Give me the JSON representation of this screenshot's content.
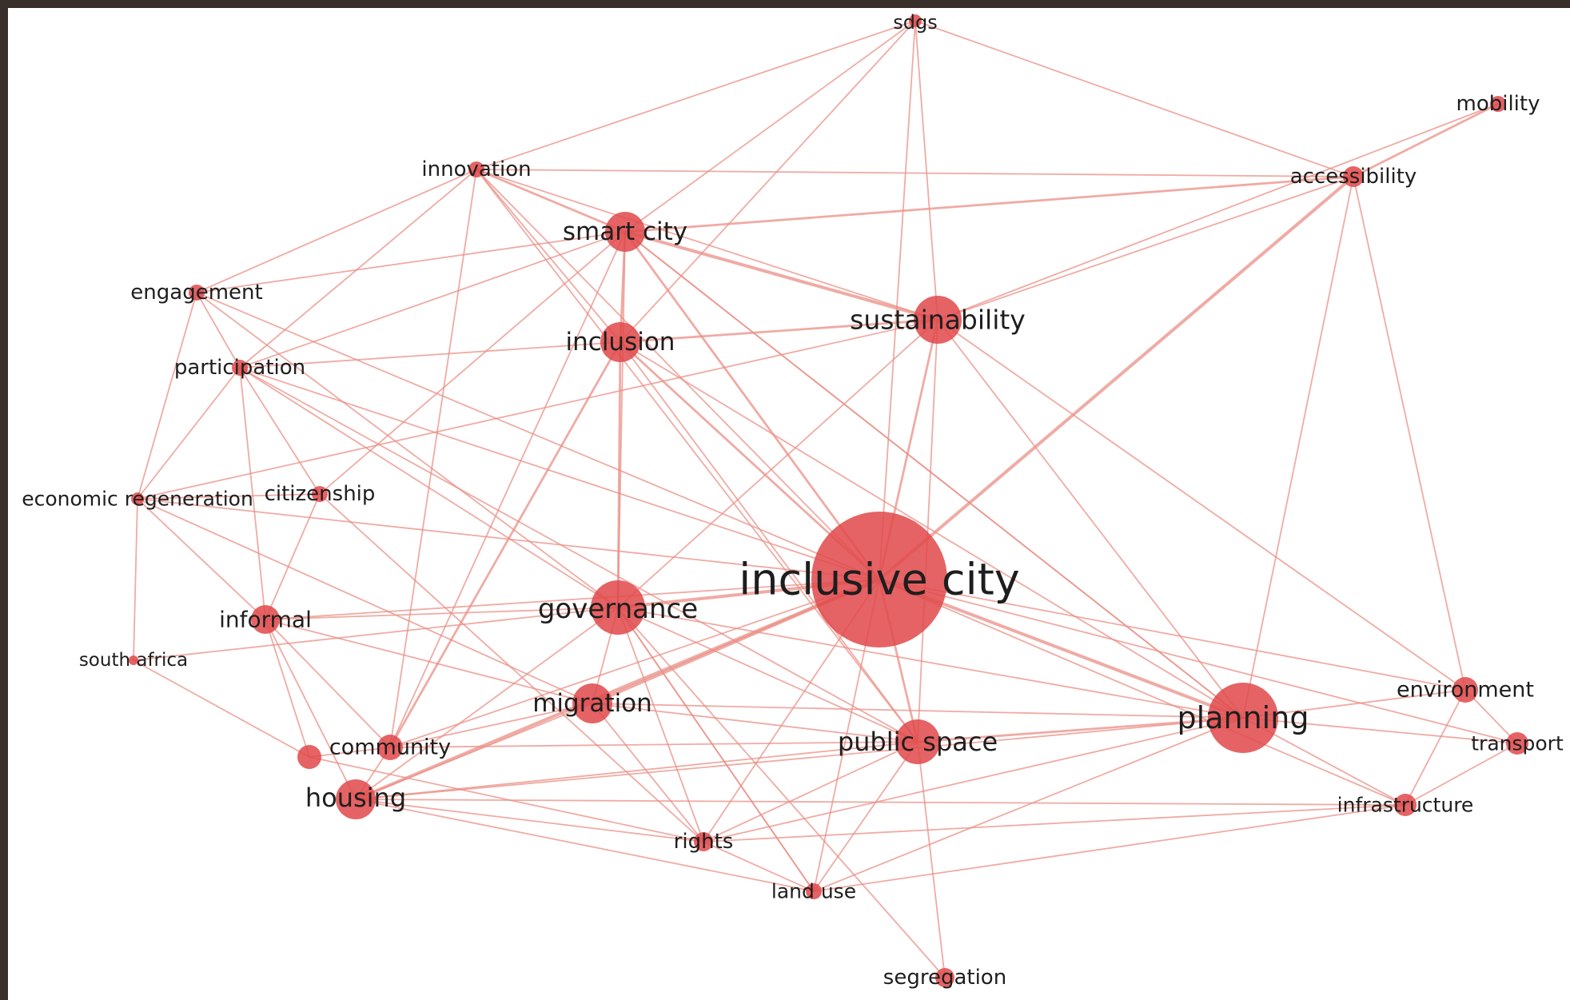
{
  "colors": {
    "background": "#ffffff",
    "border": "#3a302b",
    "node": "#e0484a",
    "edge": "#e98f86",
    "label": "#1e1e1e"
  },
  "network": {
    "nodes": [
      {
        "id": "inclusive-city",
        "label": "inclusive city"
      },
      {
        "id": "planning",
        "label": "planning"
      },
      {
        "id": "governance",
        "label": "governance"
      },
      {
        "id": "sustainability",
        "label": "sustainability"
      },
      {
        "id": "smart-city",
        "label": "smart city"
      },
      {
        "id": "inclusion",
        "label": "inclusion"
      },
      {
        "id": "public-space",
        "label": "public space"
      },
      {
        "id": "migration",
        "label": "migration"
      },
      {
        "id": "housing",
        "label": "housing"
      },
      {
        "id": "informal",
        "label": "informal"
      },
      {
        "id": "community",
        "label": "community"
      },
      {
        "id": "environment",
        "label": "environment"
      },
      {
        "id": "transport",
        "label": "transport"
      },
      {
        "id": "infrastructure",
        "label": "infrastructure"
      },
      {
        "id": "accessibility",
        "label": "accessibility"
      },
      {
        "id": "mobility",
        "label": "mobility"
      },
      {
        "id": "sdgs",
        "label": "sdgs"
      },
      {
        "id": "innovation",
        "label": "innovation"
      },
      {
        "id": "engagement",
        "label": "engagement"
      },
      {
        "id": "participation",
        "label": "participation"
      },
      {
        "id": "economic-regeneration",
        "label": "economic regeneration"
      },
      {
        "id": "citizenship",
        "label": "citizenship"
      },
      {
        "id": "south-africa",
        "label": "south africa"
      },
      {
        "id": "rights",
        "label": "rights"
      },
      {
        "id": "land-use",
        "label": "land use"
      },
      {
        "id": "segregation",
        "label": "segregation"
      },
      {
        "id": "hidden-node",
        "label": ""
      }
    ],
    "edges": [
      [
        "inclusive-city",
        "planning",
        3
      ],
      [
        "inclusive-city",
        "governance",
        3
      ],
      [
        "inclusive-city",
        "sustainability",
        2
      ],
      [
        "inclusive-city",
        "smart-city",
        2
      ],
      [
        "inclusive-city",
        "inclusion",
        2
      ],
      [
        "inclusive-city",
        "public-space",
        2
      ],
      [
        "inclusive-city",
        "migration",
        3
      ],
      [
        "inclusive-city",
        "housing",
        3
      ],
      [
        "inclusive-city",
        "informal",
        1
      ],
      [
        "inclusive-city",
        "environment",
        1
      ],
      [
        "inclusive-city",
        "accessibility",
        3
      ],
      [
        "inclusive-city",
        "sdgs",
        1
      ],
      [
        "inclusive-city",
        "innovation",
        1
      ],
      [
        "inclusive-city",
        "engagement",
        1
      ],
      [
        "inclusive-city",
        "participation",
        1
      ],
      [
        "inclusive-city",
        "economic-regeneration",
        1
      ],
      [
        "inclusive-city",
        "rights",
        1
      ],
      [
        "inclusive-city",
        "land-use",
        1
      ],
      [
        "inclusive-city",
        "transport",
        1
      ],
      [
        "inclusive-city",
        "infrastructure",
        1
      ],
      [
        "inclusive-city",
        "community",
        1
      ],
      [
        "smart-city",
        "sustainability",
        3
      ],
      [
        "smart-city",
        "inclusion",
        2
      ],
      [
        "smart-city",
        "governance",
        1
      ],
      [
        "smart-city",
        "innovation",
        2
      ],
      [
        "smart-city",
        "sdgs",
        1
      ],
      [
        "smart-city",
        "accessibility",
        2
      ],
      [
        "smart-city",
        "planning",
        1
      ],
      [
        "smart-city",
        "engagement",
        1
      ],
      [
        "smart-city",
        "participation",
        1
      ],
      [
        "smart-city",
        "community",
        1
      ],
      [
        "smart-city",
        "citizenship",
        1
      ],
      [
        "inclusion",
        "sustainability",
        2
      ],
      [
        "inclusion",
        "governance",
        2
      ],
      [
        "inclusion",
        "community",
        2
      ],
      [
        "inclusion",
        "participation",
        1
      ],
      [
        "inclusion",
        "planning",
        1
      ],
      [
        "inclusion",
        "public-space",
        1
      ],
      [
        "inclusion",
        "sdgs",
        1
      ],
      [
        "inclusion",
        "innovation",
        1
      ],
      [
        "sustainability",
        "sdgs",
        1
      ],
      [
        "sustainability",
        "accessibility",
        1
      ],
      [
        "sustainability",
        "planning",
        1
      ],
      [
        "sustainability",
        "governance",
        1
      ],
      [
        "sustainability",
        "public-space",
        1
      ],
      [
        "sustainability",
        "economic-regeneration",
        1
      ],
      [
        "sustainability",
        "innovation",
        1
      ],
      [
        "sustainability",
        "environment",
        1
      ],
      [
        "planning",
        "public-space",
        2
      ],
      [
        "planning",
        "environment",
        1
      ],
      [
        "planning",
        "transport",
        1
      ],
      [
        "planning",
        "infrastructure",
        1
      ],
      [
        "planning",
        "accessibility",
        1
      ],
      [
        "planning",
        "governance",
        1
      ],
      [
        "planning",
        "rights",
        1
      ],
      [
        "planning",
        "land-use",
        1
      ],
      [
        "planning",
        "migration",
        1
      ],
      [
        "planning",
        "housing",
        1
      ],
      [
        "planning",
        "smart-city",
        1
      ],
      [
        "governance",
        "informal",
        1
      ],
      [
        "governance",
        "participation",
        1
      ],
      [
        "governance",
        "migration",
        1
      ],
      [
        "governance",
        "south-africa",
        1
      ],
      [
        "governance",
        "rights",
        1
      ],
      [
        "governance",
        "land-use",
        1
      ],
      [
        "governance",
        "engagement",
        1
      ],
      [
        "governance",
        "public-space",
        1
      ],
      [
        "governance",
        "housing",
        1
      ],
      [
        "migration",
        "housing",
        1
      ],
      [
        "migration",
        "community",
        1
      ],
      [
        "migration",
        "public-space",
        1
      ],
      [
        "migration",
        "rights",
        1
      ],
      [
        "migration",
        "economic-regeneration",
        1
      ],
      [
        "migration",
        "informal",
        1
      ],
      [
        "housing",
        "informal",
        1
      ],
      [
        "housing",
        "rights",
        1
      ],
      [
        "housing",
        "land-use",
        1
      ],
      [
        "housing",
        "community",
        1
      ],
      [
        "housing",
        "public-space",
        1
      ],
      [
        "housing",
        "infrastructure",
        1
      ],
      [
        "informal",
        "participation",
        1
      ],
      [
        "informal",
        "citizenship",
        1
      ],
      [
        "informal",
        "community",
        1
      ],
      [
        "informal",
        "hidden-node",
        1
      ],
      [
        "informal",
        "economic-regeneration",
        1
      ],
      [
        "accessibility",
        "mobility",
        2
      ],
      [
        "accessibility",
        "sdgs",
        1
      ],
      [
        "accessibility",
        "environment",
        1
      ],
      [
        "accessibility",
        "innovation",
        1
      ],
      [
        "environment",
        "transport",
        1
      ],
      [
        "environment",
        "infrastructure",
        1
      ],
      [
        "transport",
        "infrastructure",
        1
      ],
      [
        "mobility",
        "sustainability",
        1
      ],
      [
        "engagement",
        "participation",
        1
      ],
      [
        "engagement",
        "innovation",
        1
      ],
      [
        "engagement",
        "economic-regeneration",
        1
      ],
      [
        "participation",
        "citizenship",
        1
      ],
      [
        "participation",
        "economic-regeneration",
        1
      ],
      [
        "participation",
        "innovation",
        1
      ],
      [
        "participation",
        "public-space",
        1
      ],
      [
        "economic-regeneration",
        "south-africa",
        1
      ],
      [
        "economic-regeneration",
        "citizenship",
        1
      ],
      [
        "south-africa",
        "hidden-node",
        1
      ],
      [
        "hidden-node",
        "rights",
        1
      ],
      [
        "hidden-node",
        "community",
        1
      ],
      [
        "citizenship",
        "rights",
        1
      ],
      [
        "public-space",
        "segregation",
        1
      ],
      [
        "public-space",
        "land-use",
        1
      ],
      [
        "public-space",
        "rights",
        1
      ],
      [
        "rights",
        "land-use",
        1
      ],
      [
        "land-use",
        "infrastructure",
        1
      ],
      [
        "segregation",
        "governance",
        1
      ],
      [
        "innovation",
        "sdgs",
        1
      ],
      [
        "innovation",
        "public-space",
        1
      ],
      [
        "community",
        "public-space",
        1
      ],
      [
        "community",
        "innovation",
        1
      ],
      [
        "rights",
        "infrastructure",
        1
      ],
      [
        "land-use",
        "governance",
        1
      ]
    ]
  }
}
